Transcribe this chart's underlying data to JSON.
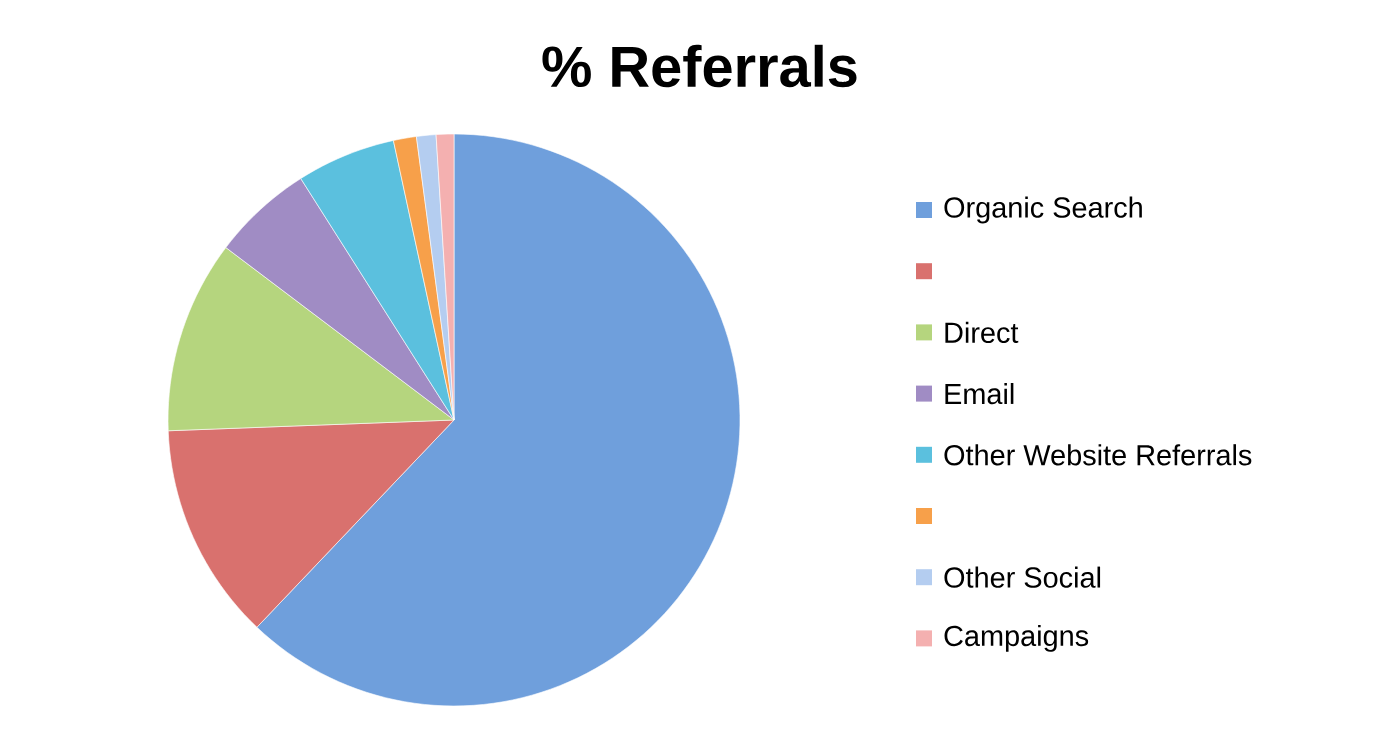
{
  "chart_data": {
    "type": "pie",
    "title": "% Referrals",
    "categories": [
      "Organic Search",
      null,
      "Direct",
      "Email",
      "Other Website Referrals",
      null,
      "Other Social",
      "Campaigns"
    ],
    "values": [
      62.1,
      12.3,
      10.9,
      5.7,
      5.6,
      1.3,
      1.1,
      1.0
    ],
    "colors": [
      "#6f9fdc",
      "#d9716e",
      "#b5d57e",
      "#a08cc4",
      "#5bc0de",
      "#f7a04a",
      "#b4cdf0",
      "#f4b0b0"
    ],
    "legend": "right"
  }
}
